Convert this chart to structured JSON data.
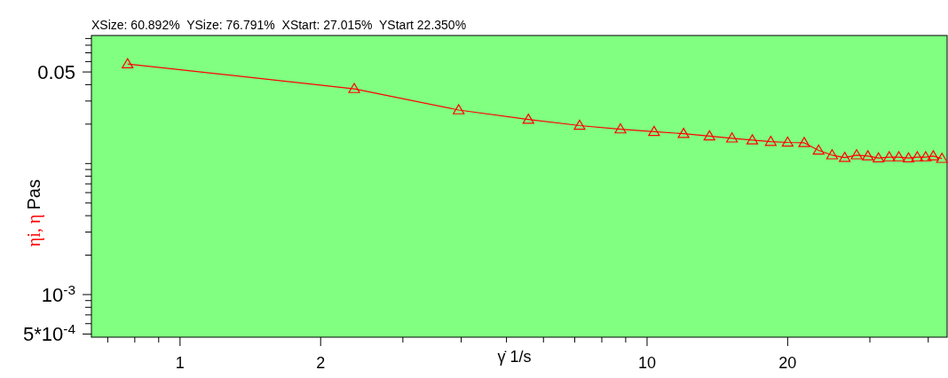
{
  "chart_data": {
    "type": "line",
    "title": "XSize: 60.892%  YSize: 76.791%  XStart: 27.015%  YStart 22.350%",
    "xlabel": "γ̇ 1/s",
    "ylabel": "ηi, η Pas",
    "log": "xy",
    "grid": false,
    "marker": "triangle",
    "line_style": "solid",
    "xlim": [
      0.646,
      43.9
    ],
    "ylim": [
      0.000473,
      0.0949
    ],
    "xticks": [
      {
        "value": 0.7,
        "label": null
      },
      {
        "value": 0.8,
        "label": null
      },
      {
        "value": 0.9,
        "label": null
      },
      1,
      2,
      {
        "value": 3,
        "label": null
      },
      {
        "value": 4,
        "label": null
      },
      {
        "value": 5,
        "label": null
      },
      {
        "value": 6,
        "label": null
      },
      {
        "value": 7,
        "label": null
      },
      {
        "value": 8,
        "label": null
      },
      {
        "value": 9,
        "label": null
      },
      10,
      20,
      {
        "value": 30,
        "label": null
      },
      {
        "value": 40,
        "label": null
      }
    ],
    "yticks": [
      {
        "value": 0.09,
        "label": null
      },
      {
        "value": 0.08,
        "label": null
      },
      {
        "value": 0.07,
        "label": null
      },
      {
        "value": 0.06,
        "label": null
      },
      0.05,
      {
        "value": 0.04,
        "label": null
      },
      {
        "value": 0.03,
        "label": null
      },
      {
        "value": 0.02,
        "label": null
      },
      {
        "value": 0.01,
        "label": null
      },
      {
        "value": 0.009,
        "label": null
      },
      {
        "value": 0.008,
        "label": null
      },
      {
        "value": 0.007,
        "label": null
      },
      {
        "value": 0.006,
        "label": null
      },
      {
        "value": 0.005,
        "label": null
      },
      {
        "value": 0.004,
        "label": null
      },
      {
        "value": 0.003,
        "label": null
      },
      {
        "value": 0.002,
        "label": null
      },
      {
        "value": 0.001,
        "label": "10$^{-3}$"
      },
      {
        "value": 0.0009,
        "label": null
      },
      {
        "value": 0.0008,
        "label": null
      },
      {
        "value": 0.0007,
        "label": null
      },
      {
        "value": 0.0006,
        "label": null
      },
      {
        "value": 0.0005,
        "label": "5*10$^{-4}$"
      }
    ],
    "series": [
      {
        "color": "#ff0000",
        "x": [
          0.772,
          2.36,
          3.95,
          5.57,
          7.17,
          8.77,
          10.35,
          11.97,
          13.6,
          15.2,
          16.8,
          18.4,
          20.0,
          21.7,
          23.3,
          24.9,
          26.5,
          28.1,
          29.7,
          31.3,
          33.0,
          34.6,
          36.3,
          37.9,
          39.5,
          41.0,
          42.8
        ],
        "values": [
          0.0575,
          0.0372,
          0.0256,
          0.0217,
          0.0195,
          0.0183,
          0.0175,
          0.0169,
          0.0162,
          0.0156,
          0.0151,
          0.0147,
          0.0145,
          0.0144,
          0.0126,
          0.0116,
          0.0111,
          0.0116,
          0.0114,
          0.011,
          0.0112,
          0.0112,
          0.011,
          0.0112,
          0.0112,
          0.0114,
          0.0109
        ]
      }
    ]
  }
}
